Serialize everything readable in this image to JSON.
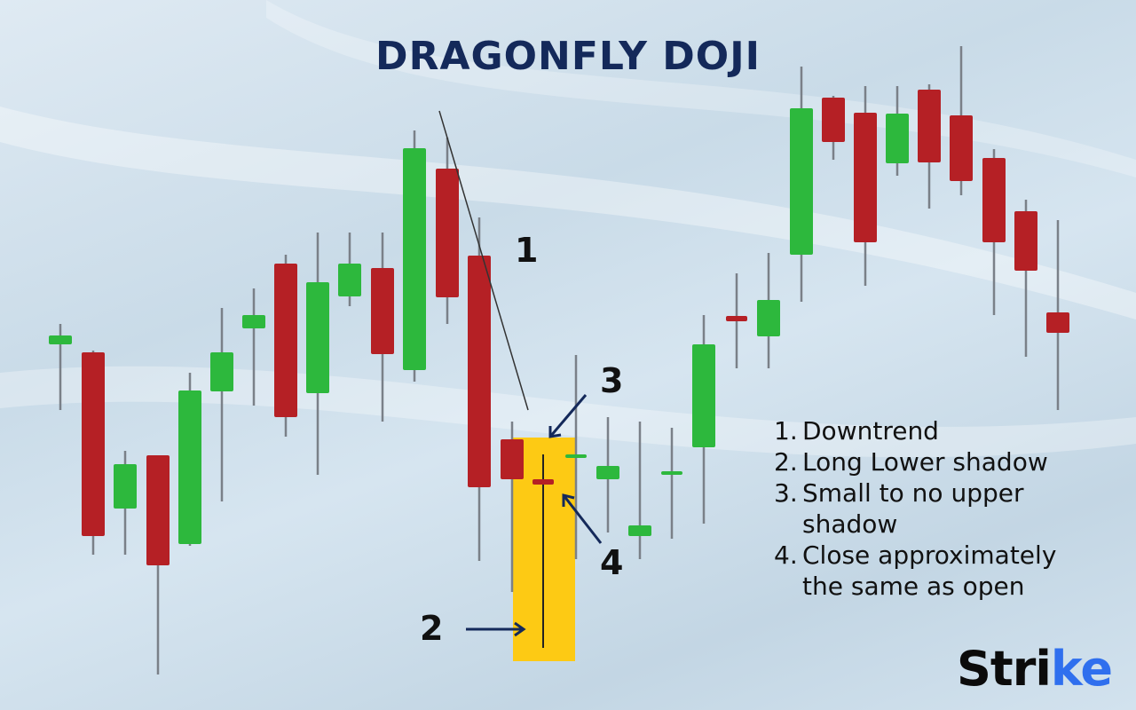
{
  "title": "DRAGONFLY DOJI",
  "markers": {
    "m1": "1",
    "m2": "2",
    "m3": "3",
    "m4": "4"
  },
  "legend": [
    {
      "n": "1.",
      "text": "Downtrend"
    },
    {
      "n": "2.",
      "text": "Long Lower shadow"
    },
    {
      "n": "3.",
      "text": "Small to no upper"
    },
    {
      "n": "",
      "text": "shadow"
    },
    {
      "n": "4.",
      "text": "Close approximately"
    },
    {
      "n": "",
      "text": "the same as open"
    }
  ],
  "logo": {
    "main": "Stri",
    "accent": "ke"
  },
  "colors": {
    "up": "#2db83d",
    "down": "#b52025",
    "wick": "#7a8088",
    "highlight": "#fdca14",
    "title": "#14295a",
    "arrow": "#14295a",
    "logo_accent": "#2f6fee"
  }
}
